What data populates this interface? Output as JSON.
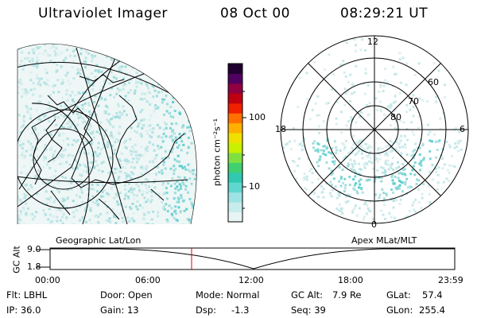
{
  "header": {
    "instrument": "Ultraviolet Imager",
    "date": "08 Oct 00",
    "time": "08:29:21 UT"
  },
  "colorbar": {
    "unit_label": "photon cm⁻²s⁻¹",
    "ticks": [
      "100",
      "10"
    ],
    "colors": [
      "#e8f4f4",
      "#c8ecec",
      "#9ee3e3",
      "#5fd7d0",
      "#30c8b0",
      "#40d070",
      "#80e040",
      "#c8f000",
      "#f0e000",
      "#ffb000",
      "#ff7000",
      "#f02000",
      "#c00010",
      "#900040",
      "#500060",
      "#200030"
    ]
  },
  "left_panel": {
    "caption": "Geographic Lat/Lon"
  },
  "right_panel": {
    "caption": "Apex MLat/MLT",
    "mlt_labels": {
      "top": "12",
      "left": "18",
      "right": "6",
      "bottom": "0"
    },
    "lat_labels": [
      "60",
      "70",
      "80"
    ]
  },
  "timeline": {
    "y_label": "GC Alt",
    "y_ticks": [
      "9.0",
      "1.8"
    ],
    "x_ticks": [
      "00:00",
      "06:00",
      "12:00",
      "18:00",
      "23:59"
    ],
    "current_marker": "08:29",
    "marker_color": "#e00000"
  },
  "status": {
    "row1": {
      "flt": "Flt: LBHL",
      "door": "Door: Open",
      "mode": "Mode: Normal",
      "gc_alt_label": "GC Alt:",
      "gc_alt_value": "7.9 Re",
      "glat_label": "GLat:",
      "glat_value": "57.4"
    },
    "row2": {
      "ip": "IP: 36.0",
      "gain": "Gain: 13",
      "dsp_label": "Dsp:",
      "dsp_value": "-1.3",
      "seq": "Seq: 39",
      "glon_label": "GLon:",
      "glon_value": "255.4"
    }
  }
}
